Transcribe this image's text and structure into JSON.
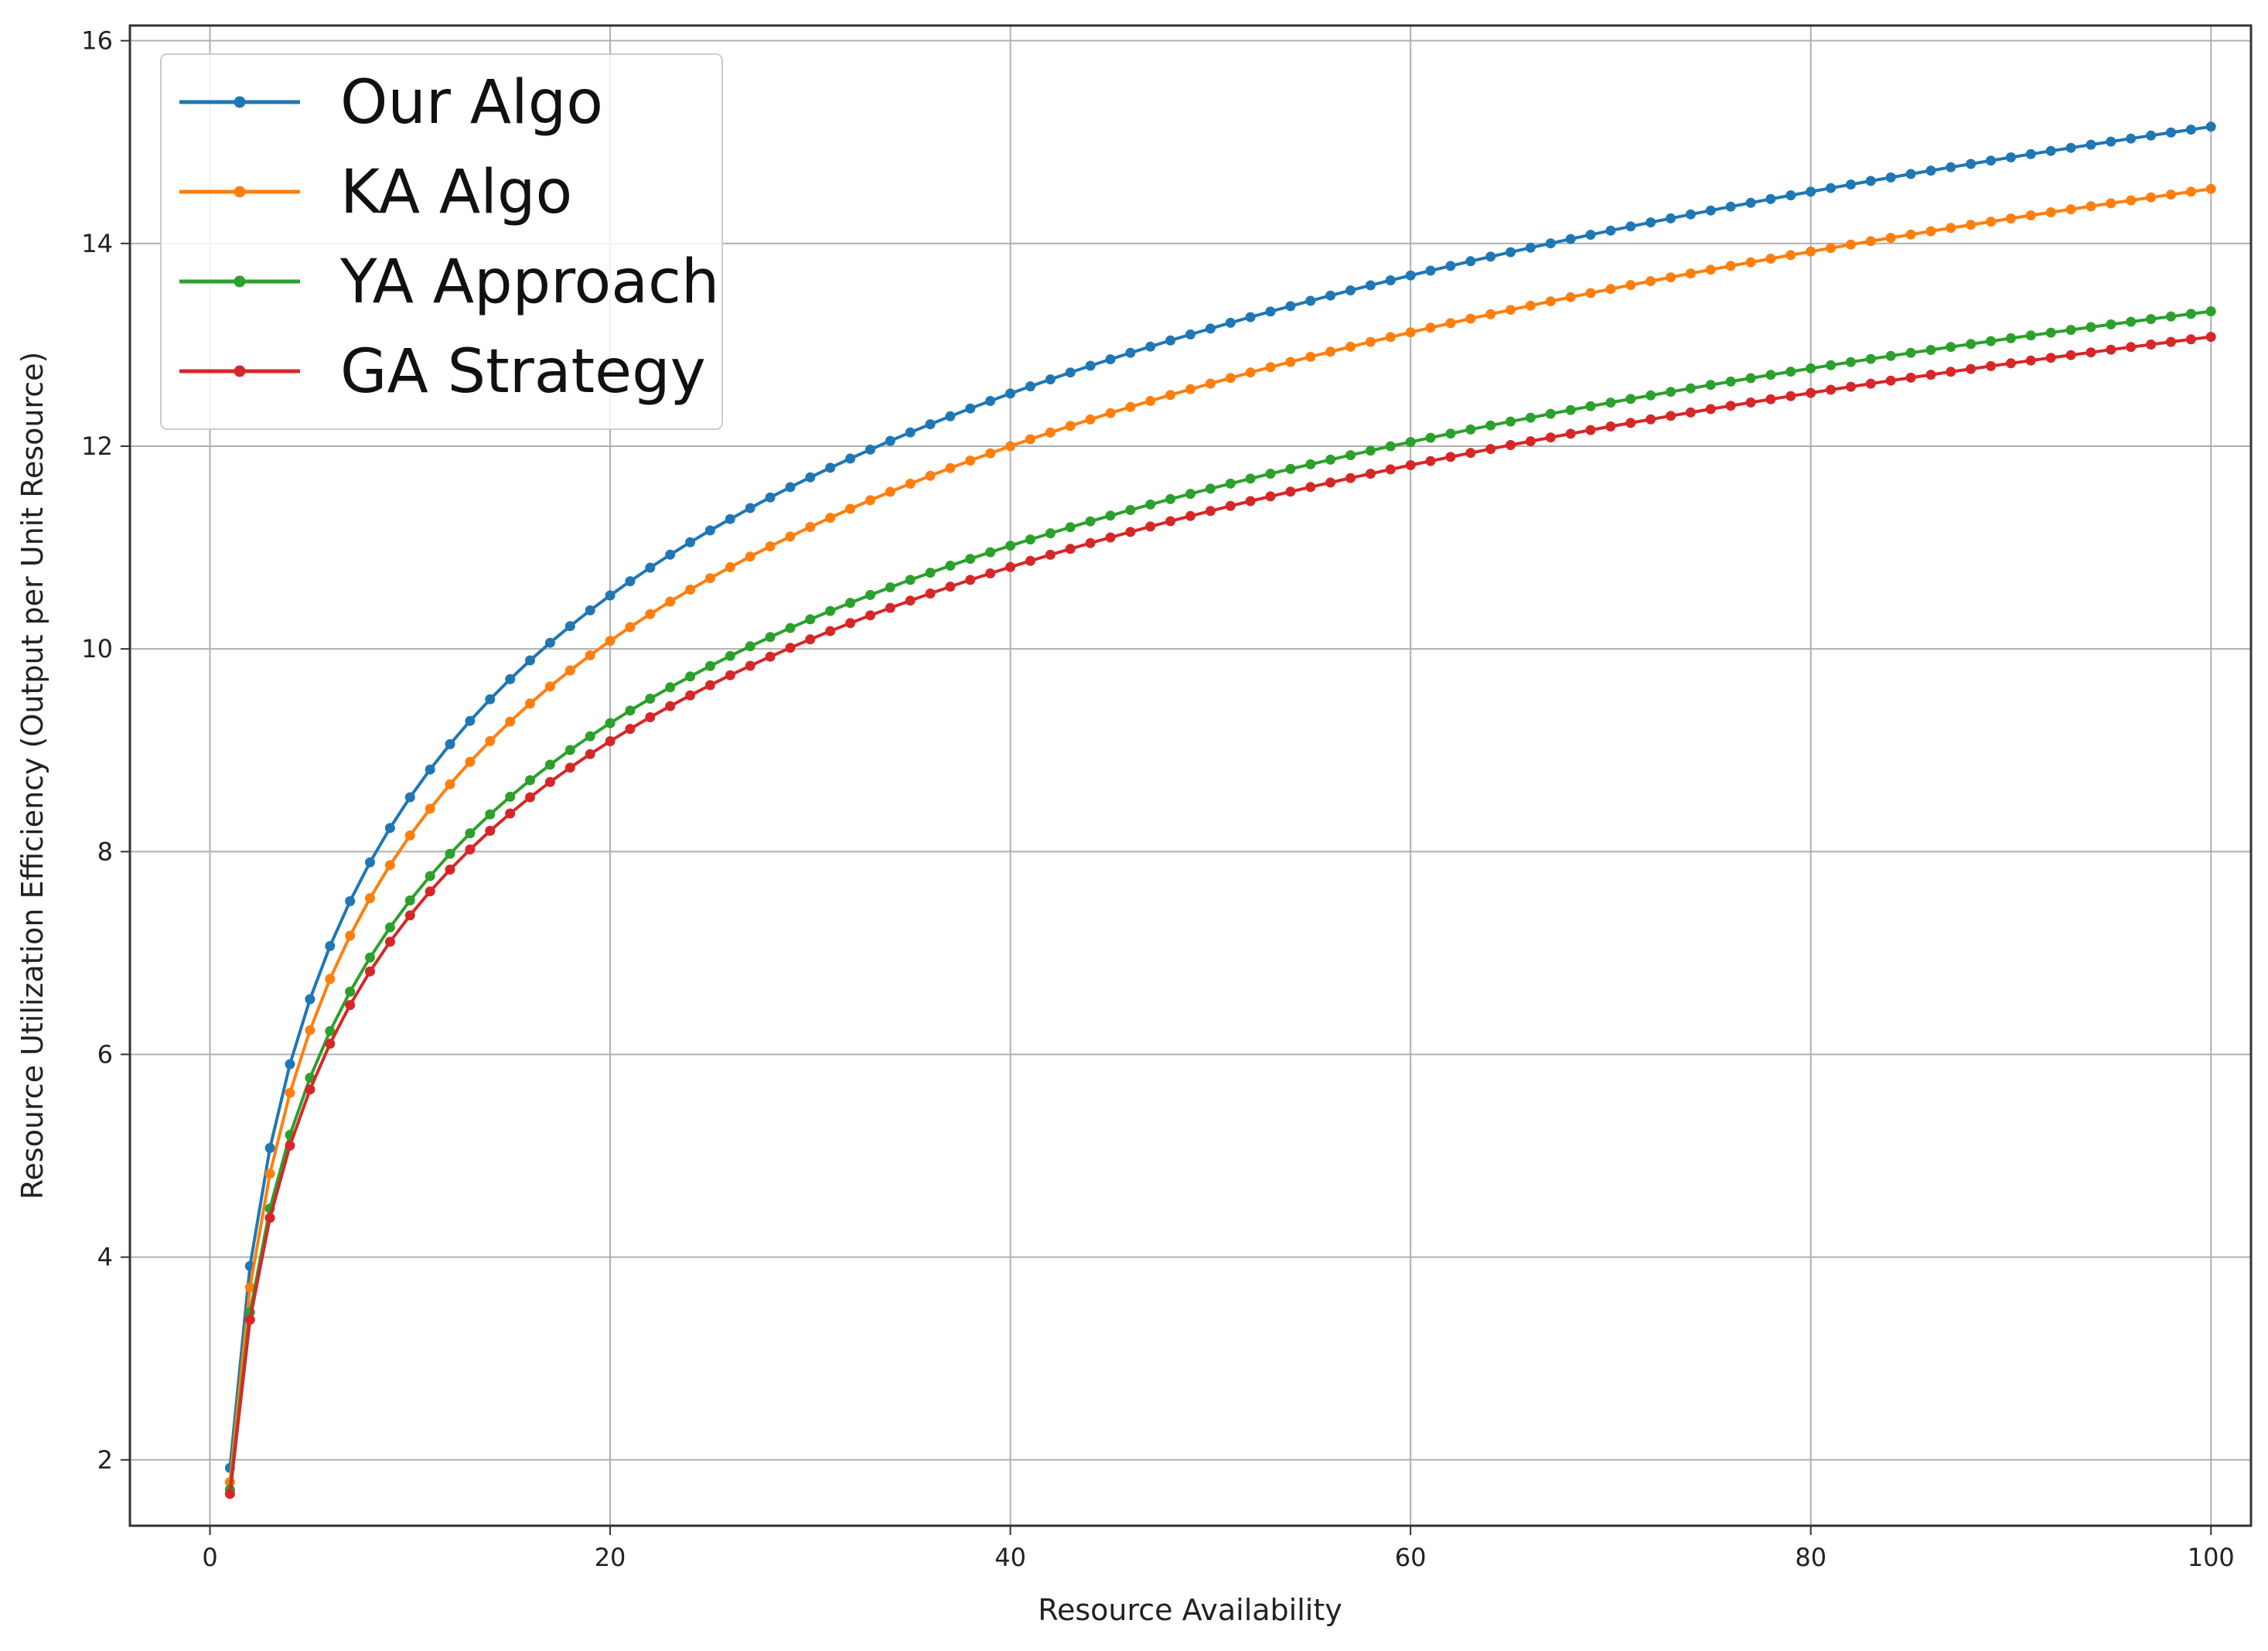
{
  "chart_data": {
    "type": "line",
    "title": "",
    "xlabel": "Resource Availability",
    "ylabel": "Resource Utilization Efficiency (Output per Unit Resource)",
    "xlim": [
      -4,
      102
    ],
    "ylim": [
      1.35,
      16.15
    ],
    "xticks": [
      0,
      20,
      40,
      60,
      80,
      100
    ],
    "yticks": [
      2,
      4,
      6,
      8,
      10,
      12,
      14,
      16
    ],
    "grid": true,
    "legend_position": "top-left",
    "x": {
      "start": 1,
      "end": 100,
      "step": 1
    },
    "series": [
      {
        "name": "Our Algo",
        "color": "#1f77b4",
        "model": "log",
        "anchors": [
          [
            1,
            2.3
          ],
          [
            10,
            8.0
          ],
          [
            20,
            10.2
          ],
          [
            40,
            12.45
          ],
          [
            60,
            13.75
          ],
          [
            80,
            14.7
          ],
          [
            100,
            15.45
          ]
        ]
      },
      {
        "name": "KA Algo",
        "color": "#ff7f0e",
        "model": "log",
        "anchors": [
          [
            1,
            2.15
          ],
          [
            10,
            7.6
          ],
          [
            20,
            9.8
          ],
          [
            40,
            11.95
          ],
          [
            60,
            13.2
          ],
          [
            80,
            14.1
          ],
          [
            100,
            14.8
          ]
        ]
      },
      {
        "name": "YA Approach",
        "color": "#2ca02c",
        "model": "log",
        "anchors": [
          [
            1,
            2.05
          ],
          [
            10,
            7.05
          ],
          [
            20,
            8.95
          ],
          [
            40,
            10.95
          ],
          [
            60,
            12.1
          ],
          [
            80,
            12.95
          ],
          [
            100,
            13.6
          ]
        ]
      },
      {
        "name": "GA Strategy",
        "color": "#d62728",
        "model": "log",
        "anchors": [
          [
            1,
            2.0
          ],
          [
            10,
            6.9
          ],
          [
            20,
            8.8
          ],
          [
            40,
            10.75
          ],
          [
            60,
            11.85
          ],
          [
            80,
            12.7
          ],
          [
            100,
            13.35
          ]
        ]
      }
    ]
  }
}
